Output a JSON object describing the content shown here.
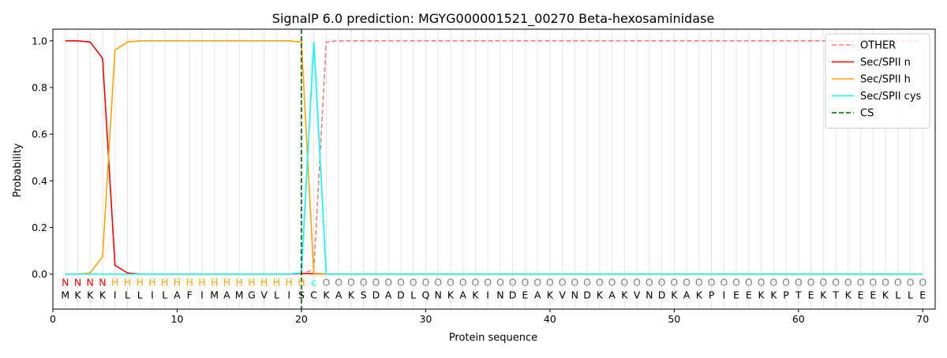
{
  "chart_data": {
    "type": "line",
    "title": "SignalP 6.0 prediction: MGYG000001521_00270 Beta-hexosaminidase",
    "xlabel": "Protein sequence",
    "ylabel": "Probability",
    "xlim": [
      0,
      71
    ],
    "ylim": [
      -0.15,
      1.05
    ],
    "xticks": [
      0,
      10,
      20,
      30,
      40,
      50,
      60,
      70
    ],
    "yticks": [
      0.0,
      0.2,
      0.4,
      0.6,
      0.8,
      1.0
    ],
    "grid": "vertical lines at each residue position",
    "legend_position": "top-right",
    "sequence": [
      "M",
      "K",
      "K",
      "K",
      "I",
      "L",
      "L",
      "I",
      "L",
      "A",
      "F",
      "I",
      "M",
      "A",
      "M",
      "G",
      "V",
      "L",
      "I",
      "S",
      "C",
      "K",
      "A",
      "K",
      "S",
      "D",
      "A",
      "D",
      "L",
      "Q",
      "N",
      "K",
      "A",
      "K",
      "I",
      "N",
      "D",
      "E",
      "A",
      "K",
      "V",
      "N",
      "D",
      "K",
      "A",
      "K",
      "V",
      "N",
      "D",
      "K",
      "A",
      "K",
      "P",
      "I",
      "E",
      "E",
      "K",
      "K",
      "P",
      "T",
      "E",
      "K",
      "T",
      "K",
      "E",
      "E",
      "K",
      "L",
      "L",
      "E"
    ],
    "region_labels": [
      "N",
      "N",
      "N",
      "N",
      "H",
      "H",
      "H",
      "H",
      "H",
      "H",
      "H",
      "H",
      "H",
      "H",
      "H",
      "H",
      "H",
      "H",
      "H",
      "H",
      "c",
      "O",
      "O",
      "O",
      "O",
      "O",
      "O",
      "O",
      "O",
      "O",
      "O",
      "O",
      "O",
      "O",
      "O",
      "O",
      "O",
      "O",
      "O",
      "O",
      "O",
      "O",
      "O",
      "O",
      "O",
      "O",
      "O",
      "O",
      "O",
      "O",
      "O",
      "O",
      "O",
      "O",
      "O",
      "O",
      "O",
      "O",
      "O",
      "O",
      "O",
      "O",
      "O",
      "O",
      "O",
      "O",
      "O",
      "O",
      "O",
      "O"
    ],
    "region_colors": {
      "N": "#ff0000",
      "H": "#ffa500",
      "c": "#00ffff",
      "O": "#808080"
    },
    "series": [
      {
        "name": "OTHER",
        "color": "#f08080",
        "dash": "dashed",
        "points": [
          [
            1,
            0.0
          ],
          [
            2,
            0.0
          ],
          [
            3,
            0.0
          ],
          [
            4,
            0.0
          ],
          [
            5,
            0.0
          ],
          [
            20,
            0.0
          ],
          [
            21,
            0.02
          ],
          [
            22,
            0.995
          ],
          [
            23,
            1.0
          ],
          [
            70,
            1.0
          ]
        ]
      },
      {
        "name": "Sec/SPII n",
        "color": "#ff0000",
        "dash": "solid",
        "points": [
          [
            1,
            1.0
          ],
          [
            2,
            1.0
          ],
          [
            3,
            0.995
          ],
          [
            4,
            0.925
          ],
          [
            5,
            0.038
          ],
          [
            6,
            0.005
          ],
          [
            7,
            0.0
          ],
          [
            19,
            0.0
          ],
          [
            20,
            0.003
          ],
          [
            21,
            0.002
          ],
          [
            22,
            0.0
          ],
          [
            70,
            0.0
          ]
        ]
      },
      {
        "name": "Sec/SPII h",
        "color": "#ffa500",
        "dash": "solid",
        "points": [
          [
            1,
            0.0
          ],
          [
            2,
            0.0
          ],
          [
            3,
            0.005
          ],
          [
            4,
            0.075
          ],
          [
            5,
            0.96
          ],
          [
            6,
            0.995
          ],
          [
            7,
            1.0
          ],
          [
            19,
            1.0
          ],
          [
            20,
            0.995
          ],
          [
            21,
            0.0
          ],
          [
            22,
            0.0
          ],
          [
            70,
            0.0
          ]
        ]
      },
      {
        "name": "Sec/SPII cys",
        "color": "#00ffff",
        "dash": "solid",
        "points": [
          [
            1,
            0.0
          ],
          [
            19,
            0.0
          ],
          [
            20,
            0.005
          ],
          [
            21,
            0.995
          ],
          [
            22,
            0.0
          ],
          [
            70,
            0.0
          ]
        ]
      }
    ],
    "cs_marker": {
      "name": "CS",
      "x": 20,
      "color": "#006400",
      "dash": "dashed"
    }
  }
}
